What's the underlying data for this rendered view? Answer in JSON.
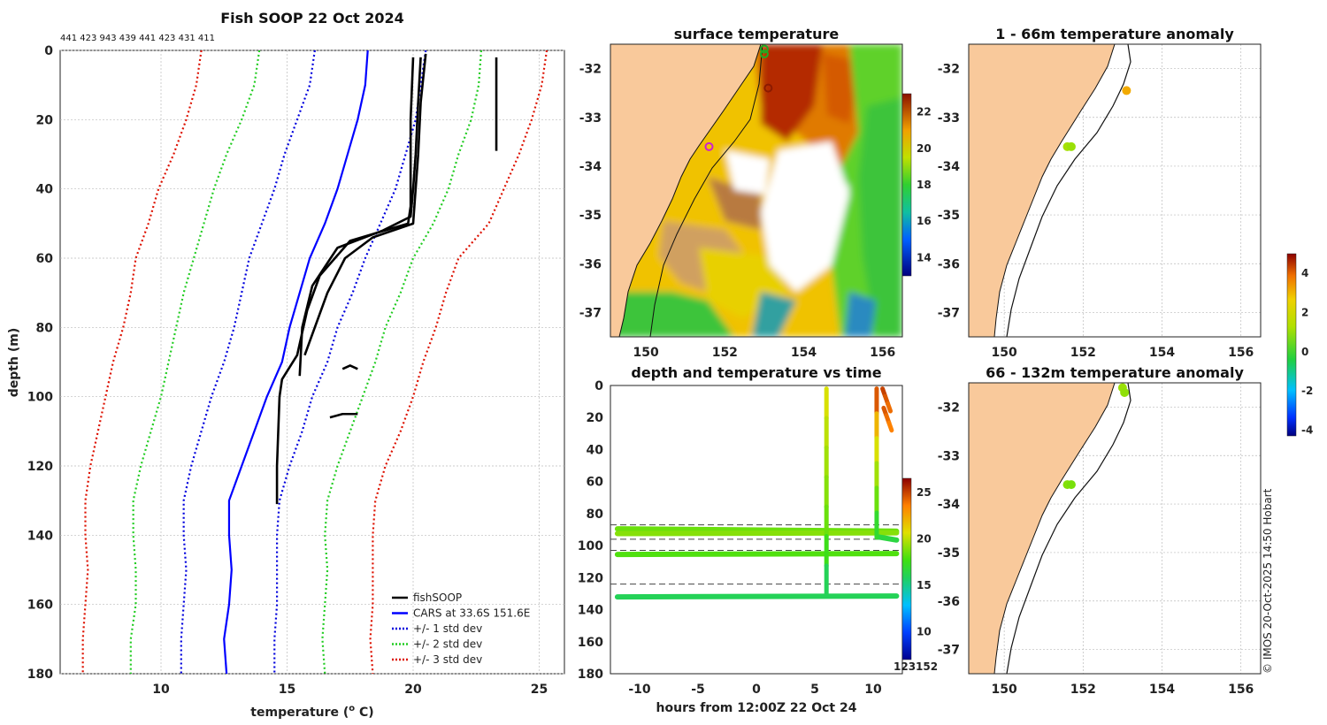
{
  "figure": {
    "copyright": "© IMOS 20-Oct-2025 14:50 Hobart",
    "colors": {
      "profile": "#000000",
      "climatology": "#0000ff",
      "std1": "#0000dd",
      "std2": "#22cc22",
      "std3": "#dd1100",
      "land": "#f9c99b",
      "coast": "#111111"
    }
  },
  "chart_data": [
    {
      "id": "profile",
      "type": "line",
      "title": "Fish SOOP 22 Oct 2024",
      "ids_text": "441 423 943 439 441 423 431 411",
      "xlabel": "temperature (o C)",
      "ylabel": "depth (m)",
      "xlim": [
        6,
        26
      ],
      "ylim": [
        0,
        180
      ],
      "xticks": [
        "10",
        "15",
        "20",
        "25"
      ],
      "xtick_values": [
        10,
        15,
        20,
        25
      ],
      "yticks": [
        "0",
        "20",
        "40",
        "60",
        "80",
        "100",
        "120",
        "140",
        "160",
        "180"
      ],
      "ytick_values": [
        0,
        20,
        40,
        60,
        80,
        100,
        120,
        140,
        160,
        180
      ],
      "legend": [
        {
          "label": "fishSOOP",
          "style": "solid",
          "color": "#000000"
        },
        {
          "label": "CARS at 33.6S 151.6E",
          "style": "solid",
          "color": "#0000ff"
        },
        {
          "label": "+/- 1 std dev",
          "style": "dotted",
          "color": "#0000dd"
        },
        {
          "label": "+/- 2 std dev",
          "style": "dotted",
          "color": "#22cc22"
        },
        {
          "label": "+/- 3 std dev",
          "style": "dotted",
          "color": "#dd1100"
        }
      ],
      "depth": [
        0,
        10,
        20,
        30,
        40,
        50,
        60,
        70,
        80,
        90,
        100,
        110,
        120,
        130,
        140,
        150,
        160,
        170,
        180
      ],
      "series": [
        {
          "name": "CARS mean",
          "values": [
            18.2,
            18.1,
            17.8,
            17.4,
            17.0,
            16.5,
            15.9,
            15.5,
            15.1,
            14.8,
            14.2,
            13.7,
            13.2,
            12.7,
            12.7,
            12.8,
            12.7,
            12.5,
            12.6
          ]
        },
        {
          "name": "-1 std",
          "values": [
            16.1,
            15.9,
            15.4,
            14.9,
            14.5,
            14.0,
            13.5,
            13.2,
            12.9,
            12.5,
            12.0,
            11.6,
            11.2,
            10.9,
            10.9,
            11.0,
            10.9,
            10.8,
            10.8
          ]
        },
        {
          "name": "+1 std",
          "values": [
            20.5,
            20.3,
            20.1,
            19.7,
            19.3,
            18.7,
            18.1,
            17.6,
            17.0,
            16.6,
            16.0,
            15.6,
            15.1,
            14.7,
            14.6,
            14.6,
            14.6,
            14.5,
            14.5
          ]
        },
        {
          "name": "-2 std",
          "values": [
            13.9,
            13.7,
            13.2,
            12.6,
            12.1,
            11.7,
            11.3,
            10.9,
            10.6,
            10.3,
            10.0,
            9.6,
            9.2,
            8.9,
            8.9,
            9.0,
            9.0,
            8.8,
            8.8
          ]
        },
        {
          "name": "+2 std",
          "values": [
            22.7,
            22.6,
            22.3,
            21.8,
            21.4,
            20.8,
            20.0,
            19.5,
            18.9,
            18.5,
            18.0,
            17.5,
            17.0,
            16.6,
            16.5,
            16.6,
            16.5,
            16.4,
            16.5
          ]
        },
        {
          "name": "-3 std",
          "values": [
            11.6,
            11.4,
            11.0,
            10.5,
            9.9,
            9.5,
            9.0,
            8.8,
            8.5,
            8.1,
            7.8,
            7.5,
            7.2,
            7.0,
            7.0,
            7.1,
            7.0,
            6.9,
            6.9
          ]
        },
        {
          "name": "+3 std",
          "values": [
            25.3,
            25.1,
            24.7,
            24.2,
            23.6,
            23.0,
            21.8,
            21.3,
            20.9,
            20.4,
            20.0,
            19.5,
            18.9,
            18.5,
            18.4,
            18.4,
            18.4,
            18.3,
            18.4
          ]
        }
      ],
      "fishsoop_profiles": [
        {
          "temp": [
            20.0,
            19.9,
            19.9,
            19.9,
            19.9,
            19.8,
            17.5,
            16.3,
            15.8,
            15.4,
            14.8,
            14.7,
            14.6,
            14.6
          ],
          "depth": [
            2,
            20,
            30,
            40,
            45,
            50,
            55,
            65,
            75,
            88,
            95,
            100,
            120,
            131
          ]
        },
        {
          "temp": [
            20.3,
            20.2,
            20.1,
            20.0,
            19.9,
            18.8,
            17.0,
            16.0,
            15.6,
            15.5
          ],
          "depth": [
            2,
            15,
            30,
            40,
            48,
            52,
            57,
            68,
            80,
            94
          ]
        },
        {
          "temp": [
            20.5,
            20.3,
            20.2,
            20.1,
            20.0,
            18.4,
            17.3,
            16.6,
            16.1,
            15.7
          ],
          "depth": [
            1,
            15,
            30,
            40,
            50,
            54,
            60,
            70,
            80,
            88
          ]
        },
        {
          "temp": [
            23.3,
            23.3,
            23.3
          ],
          "depth": [
            2,
            15,
            29
          ]
        },
        {
          "temp": [
            17.2,
            17.5,
            17.8
          ],
          "depth": [
            92,
            91,
            92
          ]
        },
        {
          "temp": [
            16.7,
            17.2,
            17.8
          ],
          "depth": [
            106,
            105,
            105
          ]
        }
      ]
    },
    {
      "id": "sst_map",
      "type": "heatmap",
      "title": "surface temperature",
      "xlim": [
        149.1,
        156.5
      ],
      "ylim": [
        -37.5,
        -31.5
      ],
      "xticks": [
        "150",
        "152",
        "154",
        "156"
      ],
      "xtick_values": [
        150,
        152,
        154,
        156
      ],
      "yticks": [
        "-32",
        "-33",
        "-34",
        "-35",
        "-36",
        "-37"
      ],
      "ytick_values": [
        -32,
        -33,
        -34,
        -35,
        -36,
        -37
      ],
      "colorbar": {
        "ticks": [
          "14",
          "16",
          "18",
          "20",
          "22"
        ],
        "tick_values": [
          14,
          16,
          18,
          20,
          22
        ],
        "range": [
          13,
          23
        ]
      },
      "markers": [
        {
          "lon": 153.0,
          "lat": -31.6,
          "color": "#22aa22"
        },
        {
          "lon": 153.0,
          "lat": -31.7,
          "color": "#22aa22"
        },
        {
          "lon": 153.1,
          "lat": -32.4,
          "color": "#8b1a00"
        },
        {
          "lon": 151.6,
          "lat": -33.6,
          "color": "#cc22cc"
        }
      ]
    },
    {
      "id": "anom_1_66",
      "type": "scatter",
      "title": "1 - 66m temperature anomaly",
      "xlim": [
        149.1,
        156.5
      ],
      "ylim": [
        -37.5,
        -31.5
      ],
      "xticks": [
        "150",
        "152",
        "154",
        "156"
      ],
      "xtick_values": [
        150,
        152,
        154,
        156
      ],
      "yticks": [
        "-32",
        "-33",
        "-34",
        "-35",
        "-36",
        "-37"
      ],
      "ytick_values": [
        -32,
        -33,
        -34,
        -35,
        -36,
        -37
      ],
      "points": [
        {
          "lon": 153.1,
          "lat": -32.45,
          "anomaly": 3.0
        },
        {
          "lon": 151.6,
          "lat": -33.6,
          "anomaly": 1.7
        },
        {
          "lon": 151.7,
          "lat": -33.6,
          "anomaly": 1.6
        }
      ]
    },
    {
      "id": "anom_66_132",
      "type": "scatter",
      "title": "66 - 132m temperature anomaly",
      "xlim": [
        149.1,
        156.5
      ],
      "ylim": [
        -37.5,
        -31.5
      ],
      "xticks": [
        "150",
        "152",
        "154",
        "156"
      ],
      "xtick_values": [
        150,
        152,
        154,
        156
      ],
      "yticks": [
        "-32",
        "-33",
        "-34",
        "-35",
        "-36",
        "-37"
      ],
      "ytick_values": [
        -32,
        -33,
        -34,
        -35,
        -36,
        -37
      ],
      "points": [
        {
          "lon": 153.0,
          "lat": -31.6,
          "anomaly": 1.6
        },
        {
          "lon": 153.05,
          "lat": -31.7,
          "anomaly": 1.5
        },
        {
          "lon": 151.6,
          "lat": -33.6,
          "anomaly": 1.4
        },
        {
          "lon": 151.7,
          "lat": -33.6,
          "anomaly": 1.3
        }
      ]
    },
    {
      "id": "anomaly_colorbar",
      "type": "heatmap",
      "range": [
        -4.3,
        5.0
      ],
      "ticks": [
        "4",
        "2",
        "0",
        "-2",
        "-4"
      ],
      "tick_values": [
        4,
        2,
        0,
        -2,
        -4
      ]
    },
    {
      "id": "depth_time",
      "type": "scatter",
      "title": "depth and temperature vs time",
      "xlabel": "hours from 12:00Z 22 Oct 24",
      "xlim": [
        -12.5,
        12.5
      ],
      "ylim": [
        0,
        180
      ],
      "xticks": [
        "-10",
        "-5",
        "0",
        "5",
        "10"
      ],
      "xtick_values": [
        -10,
        -5,
        0,
        5,
        10
      ],
      "yticks": [
        "0",
        "20",
        "40",
        "60",
        "80",
        "100",
        "120",
        "140",
        "160",
        "180"
      ],
      "ytick_values": [
        0,
        20,
        40,
        60,
        80,
        100,
        120,
        140,
        160,
        180
      ],
      "colorbar": {
        "ticks": [
          "10",
          "15",
          "20",
          "25"
        ],
        "tick_values": [
          10,
          15,
          20,
          25
        ],
        "range": [
          7,
          26.5
        ]
      },
      "overlap_label": "1​2​3​1​5​2",
      "dashed_depths": [
        87,
        96,
        103,
        124
      ],
      "tows": [
        {
          "x0": -11.9,
          "x1": 12.0,
          "d0": 89.5,
          "d1": 91.0,
          "temp": 18.5
        },
        {
          "x0": -11.9,
          "x1": 12.0,
          "d0": 92.5,
          "d1": 92.0,
          "temp": 19.0
        },
        {
          "x0": -11.9,
          "x1": 12.0,
          "d0": 105.5,
          "d1": 105.0,
          "temp": 18.0
        },
        {
          "x0": -11.9,
          "x1": 12.0,
          "d0": 132.0,
          "d1": 131.5,
          "temp": 16.0
        },
        {
          "x0": 10.4,
          "x1": 12.0,
          "d0": 94.5,
          "d1": 96.5,
          "temp": 16.5
        }
      ],
      "casts": [
        {
          "x": 6.0,
          "d0": 2,
          "d1": 131,
          "temps": [
            20.5,
            20.0,
            19.5,
            19.0,
            18.5,
            17.5,
            16.0
          ]
        },
        {
          "x": 10.3,
          "d0": 2,
          "d1": 95,
          "temps": [
            24.5,
            22.0,
            20.5,
            19.5,
            18.5,
            17.0
          ]
        },
        {
          "x": 10.8,
          "d0": 2,
          "d1": 16,
          "temps": [
            25.0,
            24.5,
            24.0
          ]
        },
        {
          "x": 10.9,
          "d0": 14,
          "d1": 28,
          "temps": [
            24.5,
            24.0,
            23.5
          ]
        }
      ]
    }
  ]
}
